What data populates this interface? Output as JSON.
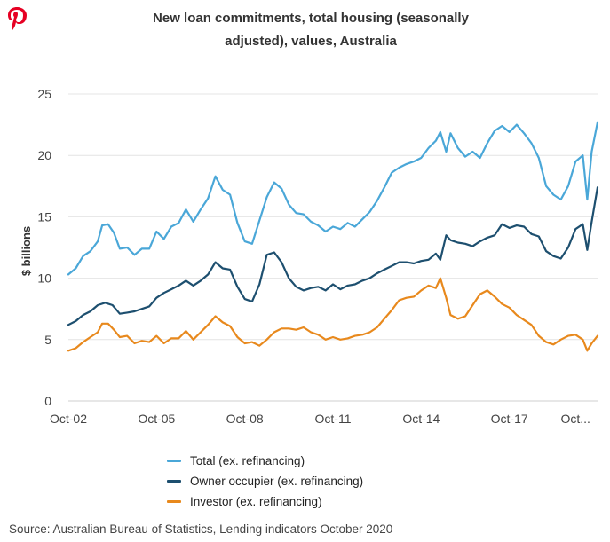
{
  "chart_data": {
    "type": "line",
    "title": "New loan commitments, total housing (seasonally adjusted), values, Australia",
    "title_lines": [
      "New loan commitments, total housing (seasonally",
      "adjusted), values, Australia"
    ],
    "xlabel": "",
    "ylabel": "$ billions",
    "ylim": [
      0,
      25
    ],
    "xlim": [
      2002.75,
      2020.75
    ],
    "grid": true,
    "yticks": [
      0,
      5,
      10,
      15,
      20,
      25
    ],
    "xticks": [
      {
        "value": 2002.75,
        "label": "Oct-02"
      },
      {
        "value": 2005.75,
        "label": "Oct-05"
      },
      {
        "value": 2008.75,
        "label": "Oct-08"
      },
      {
        "value": 2011.75,
        "label": "Oct-11"
      },
      {
        "value": 2014.75,
        "label": "Oct-14"
      },
      {
        "value": 2017.75,
        "label": "Oct-17"
      },
      {
        "value": 2020.0,
        "label": "Oct..."
      }
    ],
    "legend_position": "bottom",
    "series": [
      {
        "name": "Total (ex. refinancing)",
        "color": "#4aa7d8",
        "points": [
          [
            2002.75,
            10.3
          ],
          [
            2003.0,
            10.8
          ],
          [
            2003.25,
            11.8
          ],
          [
            2003.5,
            12.2
          ],
          [
            2003.75,
            13.0
          ],
          [
            2003.9,
            14.3
          ],
          [
            2004.1,
            14.4
          ],
          [
            2004.3,
            13.7
          ],
          [
            2004.5,
            12.4
          ],
          [
            2004.75,
            12.5
          ],
          [
            2005.0,
            11.9
          ],
          [
            2005.25,
            12.4
          ],
          [
            2005.5,
            12.4
          ],
          [
            2005.75,
            13.8
          ],
          [
            2006.0,
            13.2
          ],
          [
            2006.25,
            14.2
          ],
          [
            2006.5,
            14.5
          ],
          [
            2006.75,
            15.6
          ],
          [
            2007.0,
            14.6
          ],
          [
            2007.25,
            15.6
          ],
          [
            2007.5,
            16.5
          ],
          [
            2007.75,
            18.3
          ],
          [
            2008.0,
            17.2
          ],
          [
            2008.25,
            16.8
          ],
          [
            2008.5,
            14.5
          ],
          [
            2008.75,
            13.0
          ],
          [
            2009.0,
            12.8
          ],
          [
            2009.25,
            14.7
          ],
          [
            2009.5,
            16.6
          ],
          [
            2009.75,
            17.8
          ],
          [
            2010.0,
            17.3
          ],
          [
            2010.25,
            16.0
          ],
          [
            2010.5,
            15.3
          ],
          [
            2010.75,
            15.2
          ],
          [
            2011.0,
            14.6
          ],
          [
            2011.25,
            14.3
          ],
          [
            2011.5,
            13.8
          ],
          [
            2011.75,
            14.2
          ],
          [
            2012.0,
            14.0
          ],
          [
            2012.25,
            14.5
          ],
          [
            2012.5,
            14.2
          ],
          [
            2012.75,
            14.8
          ],
          [
            2013.0,
            15.4
          ],
          [
            2013.25,
            16.3
          ],
          [
            2013.5,
            17.4
          ],
          [
            2013.75,
            18.6
          ],
          [
            2014.0,
            19.0
          ],
          [
            2014.25,
            19.3
          ],
          [
            2014.5,
            19.5
          ],
          [
            2014.75,
            19.8
          ],
          [
            2015.0,
            20.6
          ],
          [
            2015.25,
            21.2
          ],
          [
            2015.4,
            21.9
          ],
          [
            2015.6,
            20.3
          ],
          [
            2015.75,
            21.8
          ],
          [
            2016.0,
            20.6
          ],
          [
            2016.25,
            19.9
          ],
          [
            2016.5,
            20.3
          ],
          [
            2016.75,
            19.8
          ],
          [
            2017.0,
            21.0
          ],
          [
            2017.25,
            22.0
          ],
          [
            2017.5,
            22.4
          ],
          [
            2017.75,
            21.9
          ],
          [
            2018.0,
            22.5
          ],
          [
            2018.25,
            21.8
          ],
          [
            2018.5,
            21.0
          ],
          [
            2018.75,
            19.8
          ],
          [
            2019.0,
            17.5
          ],
          [
            2019.25,
            16.8
          ],
          [
            2019.5,
            16.4
          ],
          [
            2019.75,
            17.5
          ],
          [
            2020.0,
            19.5
          ],
          [
            2020.25,
            20.0
          ],
          [
            2020.4,
            16.4
          ],
          [
            2020.55,
            20.3
          ],
          [
            2020.75,
            22.7
          ]
        ]
      },
      {
        "name": "Owner occupier (ex. refinancing)",
        "color": "#1d4f6f",
        "points": [
          [
            2002.75,
            6.2
          ],
          [
            2003.0,
            6.5
          ],
          [
            2003.25,
            7.0
          ],
          [
            2003.5,
            7.3
          ],
          [
            2003.75,
            7.8
          ],
          [
            2004.0,
            8.0
          ],
          [
            2004.25,
            7.8
          ],
          [
            2004.5,
            7.1
          ],
          [
            2004.75,
            7.2
          ],
          [
            2005.0,
            7.3
          ],
          [
            2005.25,
            7.5
          ],
          [
            2005.5,
            7.7
          ],
          [
            2005.75,
            8.4
          ],
          [
            2006.0,
            8.8
          ],
          [
            2006.25,
            9.1
          ],
          [
            2006.5,
            9.4
          ],
          [
            2006.75,
            9.8
          ],
          [
            2007.0,
            9.4
          ],
          [
            2007.25,
            9.8
          ],
          [
            2007.5,
            10.3
          ],
          [
            2007.75,
            11.3
          ],
          [
            2008.0,
            10.8
          ],
          [
            2008.25,
            10.7
          ],
          [
            2008.5,
            9.3
          ],
          [
            2008.75,
            8.3
          ],
          [
            2009.0,
            8.1
          ],
          [
            2009.25,
            9.5
          ],
          [
            2009.5,
            11.9
          ],
          [
            2009.75,
            12.1
          ],
          [
            2010.0,
            11.3
          ],
          [
            2010.25,
            10.0
          ],
          [
            2010.5,
            9.3
          ],
          [
            2010.75,
            9.0
          ],
          [
            2011.0,
            9.2
          ],
          [
            2011.25,
            9.3
          ],
          [
            2011.5,
            9.0
          ],
          [
            2011.75,
            9.5
          ],
          [
            2012.0,
            9.1
          ],
          [
            2012.25,
            9.4
          ],
          [
            2012.5,
            9.5
          ],
          [
            2012.75,
            9.8
          ],
          [
            2013.0,
            10.0
          ],
          [
            2013.25,
            10.4
          ],
          [
            2013.5,
            10.7
          ],
          [
            2013.75,
            11.0
          ],
          [
            2014.0,
            11.3
          ],
          [
            2014.25,
            11.3
          ],
          [
            2014.5,
            11.2
          ],
          [
            2014.75,
            11.4
          ],
          [
            2015.0,
            11.5
          ],
          [
            2015.25,
            12.0
          ],
          [
            2015.4,
            11.5
          ],
          [
            2015.6,
            13.5
          ],
          [
            2015.75,
            13.1
          ],
          [
            2016.0,
            12.9
          ],
          [
            2016.25,
            12.8
          ],
          [
            2016.5,
            12.6
          ],
          [
            2016.75,
            13.0
          ],
          [
            2017.0,
            13.3
          ],
          [
            2017.25,
            13.5
          ],
          [
            2017.5,
            14.4
          ],
          [
            2017.75,
            14.1
          ],
          [
            2018.0,
            14.3
          ],
          [
            2018.25,
            14.2
          ],
          [
            2018.5,
            13.6
          ],
          [
            2018.75,
            13.4
          ],
          [
            2019.0,
            12.2
          ],
          [
            2019.25,
            11.8
          ],
          [
            2019.5,
            11.6
          ],
          [
            2019.75,
            12.5
          ],
          [
            2020.0,
            14.0
          ],
          [
            2020.25,
            14.4
          ],
          [
            2020.4,
            12.3
          ],
          [
            2020.55,
            14.6
          ],
          [
            2020.75,
            17.4
          ]
        ]
      },
      {
        "name": "Investor (ex. refinancing)",
        "color": "#e8891d",
        "points": [
          [
            2002.75,
            4.1
          ],
          [
            2003.0,
            4.3
          ],
          [
            2003.25,
            4.8
          ],
          [
            2003.5,
            5.2
          ],
          [
            2003.75,
            5.6
          ],
          [
            2003.9,
            6.3
          ],
          [
            2004.1,
            6.3
          ],
          [
            2004.3,
            5.8
          ],
          [
            2004.5,
            5.2
          ],
          [
            2004.75,
            5.3
          ],
          [
            2005.0,
            4.7
          ],
          [
            2005.25,
            4.9
          ],
          [
            2005.5,
            4.8
          ],
          [
            2005.75,
            5.3
          ],
          [
            2006.0,
            4.7
          ],
          [
            2006.25,
            5.1
          ],
          [
            2006.5,
            5.1
          ],
          [
            2006.75,
            5.7
          ],
          [
            2007.0,
            5.0
          ],
          [
            2007.25,
            5.6
          ],
          [
            2007.5,
            6.2
          ],
          [
            2007.75,
            6.9
          ],
          [
            2008.0,
            6.4
          ],
          [
            2008.25,
            6.1
          ],
          [
            2008.5,
            5.2
          ],
          [
            2008.75,
            4.7
          ],
          [
            2009.0,
            4.8
          ],
          [
            2009.25,
            4.5
          ],
          [
            2009.5,
            5.0
          ],
          [
            2009.75,
            5.6
          ],
          [
            2010.0,
            5.9
          ],
          [
            2010.25,
            5.9
          ],
          [
            2010.5,
            5.8
          ],
          [
            2010.75,
            6.0
          ],
          [
            2011.0,
            5.6
          ],
          [
            2011.25,
            5.4
          ],
          [
            2011.5,
            5.0
          ],
          [
            2011.75,
            5.2
          ],
          [
            2012.0,
            5.0
          ],
          [
            2012.25,
            5.1
          ],
          [
            2012.5,
            5.3
          ],
          [
            2012.75,
            5.4
          ],
          [
            2013.0,
            5.6
          ],
          [
            2013.25,
            6.0
          ],
          [
            2013.5,
            6.7
          ],
          [
            2013.75,
            7.4
          ],
          [
            2014.0,
            8.2
          ],
          [
            2014.25,
            8.4
          ],
          [
            2014.5,
            8.5
          ],
          [
            2014.75,
            9.0
          ],
          [
            2015.0,
            9.4
          ],
          [
            2015.25,
            9.2
          ],
          [
            2015.4,
            10.0
          ],
          [
            2015.6,
            8.4
          ],
          [
            2015.75,
            7.0
          ],
          [
            2016.0,
            6.7
          ],
          [
            2016.25,
            6.9
          ],
          [
            2016.5,
            7.8
          ],
          [
            2016.75,
            8.7
          ],
          [
            2017.0,
            9.0
          ],
          [
            2017.25,
            8.5
          ],
          [
            2017.5,
            7.9
          ],
          [
            2017.75,
            7.6
          ],
          [
            2018.0,
            7.0
          ],
          [
            2018.25,
            6.6
          ],
          [
            2018.5,
            6.2
          ],
          [
            2018.75,
            5.3
          ],
          [
            2019.0,
            4.8
          ],
          [
            2019.25,
            4.6
          ],
          [
            2019.5,
            5.0
          ],
          [
            2019.75,
            5.3
          ],
          [
            2020.0,
            5.4
          ],
          [
            2020.25,
            5.0
          ],
          [
            2020.4,
            4.1
          ],
          [
            2020.55,
            4.7
          ],
          [
            2020.75,
            5.3
          ]
        ]
      }
    ]
  },
  "logo": {
    "name": "pinterest-logo",
    "color": "#e60023"
  },
  "source": "Source: Australian Bureau of Statistics, Lending indicators October 2020"
}
